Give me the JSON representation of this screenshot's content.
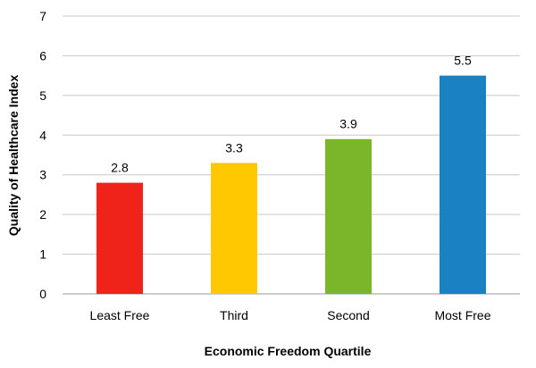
{
  "chart_data": {
    "type": "bar",
    "categories": [
      "Least Free",
      "Third",
      "Second",
      "Most Free"
    ],
    "values": [
      2.8,
      3.3,
      3.9,
      5.5
    ],
    "data_labels": [
      "2.8",
      "3.3",
      "3.9",
      "5.5"
    ],
    "bar_colors": [
      "#f0231a",
      "#ffc800",
      "#7ab52a",
      "#1a82c2"
    ],
    "title": "",
    "xlabel": "Economic Freedom Quartile",
    "ylabel": "Quality of Healthcare Index",
    "ylim": [
      0,
      7
    ],
    "yticks": [
      "0",
      "1",
      "2",
      "3",
      "4",
      "5",
      "6",
      "7"
    ],
    "grid": true,
    "legend": "none"
  }
}
